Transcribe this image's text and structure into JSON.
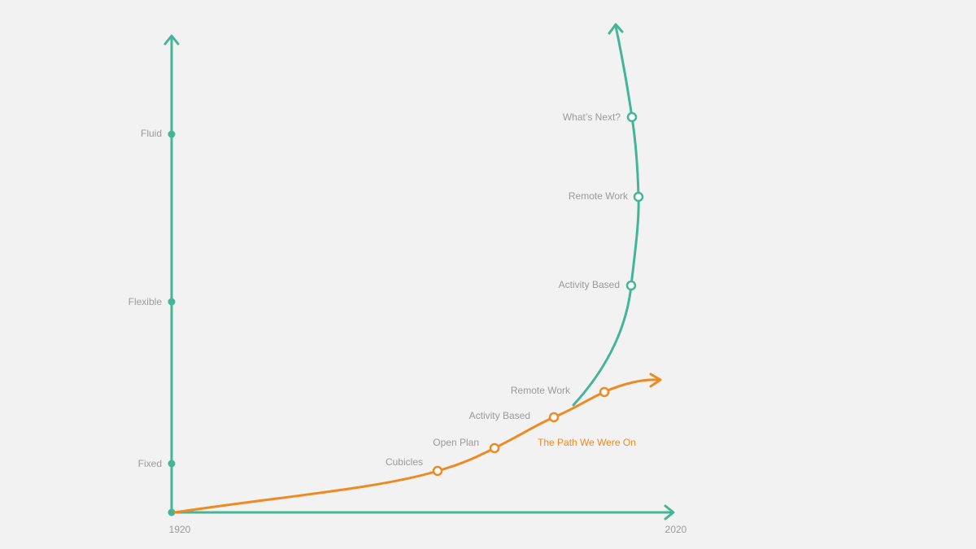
{
  "axes": {
    "y_labels": [
      "Fluid",
      "Flexible",
      "Fixed"
    ],
    "x_labels": [
      "1920",
      "2020"
    ]
  },
  "path_we_were_on": {
    "label": "The Path We Were On",
    "milestones": [
      "Cubicles",
      "Open Plan",
      "Activity Based",
      "Remote Work"
    ]
  },
  "new_path": {
    "milestones": [
      "Activity Based",
      "Remote Work",
      "What’s Next?"
    ]
  }
}
